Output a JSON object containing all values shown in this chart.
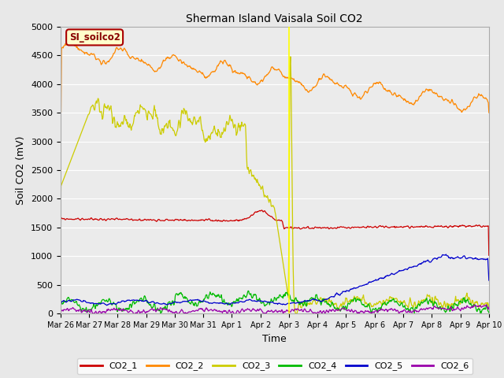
{
  "title": "Sherman Island Vaisala Soil CO2",
  "xlabel": "Time",
  "ylabel": "Soil CO2 (mV)",
  "ylim": [
    0,
    5000
  ],
  "fig_bg_color": "#e8e8e8",
  "plot_bg_color": "#ebebeb",
  "legend_label": "SI_soilco2",
  "legend_text_color": "#880000",
  "legend_bg_color": "#ffffcc",
  "legend_border_color": "#aa0000",
  "vline_color": "#ffff00",
  "series_colors": {
    "CO2_1": "#cc0000",
    "CO2_2": "#ff8800",
    "CO2_3": "#cccc00",
    "CO2_4": "#00bb00",
    "CO2_5": "#0000cc",
    "CO2_6": "#9900aa"
  },
  "tick_labels": [
    "Mar 26",
    "Mar 27",
    "Mar 28",
    "Mar 29",
    "Mar 30",
    "Mar 31",
    "Apr 1",
    "Apr 2",
    "Apr 3",
    "Apr 4",
    "Apr 5",
    "Apr 6",
    "Apr 7",
    "Apr 8",
    "Apr 9",
    "Apr 10"
  ]
}
